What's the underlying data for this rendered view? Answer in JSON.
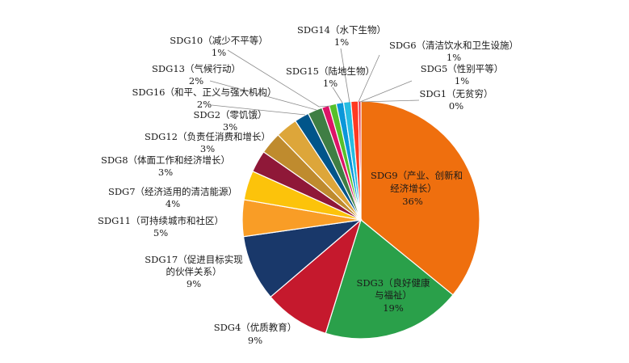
{
  "chart_data": {
    "type": "pie",
    "title": "",
    "start": "12 o'clock, clockwise",
    "slices": [
      {
        "label": "SDG9（产业、创新和经济增长）",
        "value": 36,
        "pct": "36%",
        "color": "#ef6f0e",
        "inside": true
      },
      {
        "label": "SDG3（良好健康与福祉）",
        "value": 19,
        "pct": "19%",
        "color": "#2aa04a",
        "inside": true
      },
      {
        "label": "SDG4（优质教育）",
        "value": 9,
        "pct": "9%",
        "color": "#c5192d"
      },
      {
        "label": "SDG17（促进目标实现的伙伴关系）",
        "value": 9,
        "pct": "9%",
        "color": "#19386a"
      },
      {
        "label": "SDG11（可持续城市和社区）",
        "value": 5,
        "pct": "5%",
        "color": "#f99d26"
      },
      {
        "label": "SDG7（经济适用的清洁能源）",
        "value": 4,
        "pct": "4%",
        "color": "#fcc30b"
      },
      {
        "label": "SDG8（体面工作和经济增长）",
        "value": 3,
        "pct": "3%",
        "color": "#8f1838"
      },
      {
        "label": "SDG12（负责任消费和增长）",
        "value": 3,
        "pct": "3%",
        "color": "#bf8b2e"
      },
      {
        "label": "SDG2（零饥饿）",
        "value": 3,
        "pct": "3%",
        "color": "#dda63a"
      },
      {
        "label": "SDG16（和平、正义与强大机构）",
        "value": 2,
        "pct": "2%",
        "color": "#00558a"
      },
      {
        "label": "SDG13（气候行动）",
        "value": 2,
        "pct": "2%",
        "color": "#3f7e44"
      },
      {
        "label": "SDG10（减少不平等）",
        "value": 1,
        "pct": "1%",
        "color": "#dd1367"
      },
      {
        "label": "SDG15（陆地生物）",
        "value": 1,
        "pct": "1%",
        "color": "#56c02b"
      },
      {
        "label": "SDG14（水下生物）",
        "value": 1,
        "pct": "1%",
        "color": "#0a97d9"
      },
      {
        "label": "SDG6（清洁饮水和卫生设施）",
        "value": 1,
        "pct": "1%",
        "color": "#26bde2"
      },
      {
        "label": "SDG5（性别平等）",
        "value": 1,
        "pct": "1%",
        "color": "#ff3a21"
      },
      {
        "label": "SDG1（无贫穷）",
        "value": 0,
        "pct": "0%",
        "color": "#e5243b"
      }
    ]
  },
  "labels": {
    "sdg9_l1": "SDG9（产业、创新和",
    "sdg9_l2": "经济增长）",
    "sdg9_pct": "36%",
    "sdg3_l1": "SDG3（良好健康",
    "sdg3_l2": "与福祉）",
    "sdg3_pct": "19%",
    "sdg4_l1": "SDG4（优质教育）",
    "sdg4_pct": "9%",
    "sdg17_l1": "SDG17（促进目标实现",
    "sdg17_l2": "的伙伴关系）",
    "sdg17_pct": "9%",
    "sdg11_l1": "SDG11（可持续城市和社区）",
    "sdg11_pct": "5%",
    "sdg7_l1": "SDG7（经济适用的清洁能源）",
    "sdg7_pct": "4%",
    "sdg8_l1": "SDG8（体面工作和经济增长）",
    "sdg8_pct": "3%",
    "sdg12_l1": "SDG12（负责任消费和增长）",
    "sdg12_pct": "3%",
    "sdg2_l1": "SDG2（零饥饿）",
    "sdg2_pct": "3%",
    "sdg16_l1": "SDG16（和平、正义与强大机构）",
    "sdg16_pct": "2%",
    "sdg13_l1": "SDG13（气候行动）",
    "sdg13_pct": "2%",
    "sdg10_l1": "SDG10（减少不平等）",
    "sdg10_pct": "1%",
    "sdg15_l1": "SDG15（陆地生物）",
    "sdg15_pct": "1%",
    "sdg14_l1": "SDG14（水下生物）",
    "sdg14_pct": "1%",
    "sdg6_l1": "SDG6（清洁饮水和卫生设施）",
    "sdg6_pct": "1%",
    "sdg5_l1": "SDG5（性别平等）",
    "sdg5_pct": "1%",
    "sdg1_l1": "SDG1（无贫穷）",
    "sdg1_pct": "0%"
  }
}
